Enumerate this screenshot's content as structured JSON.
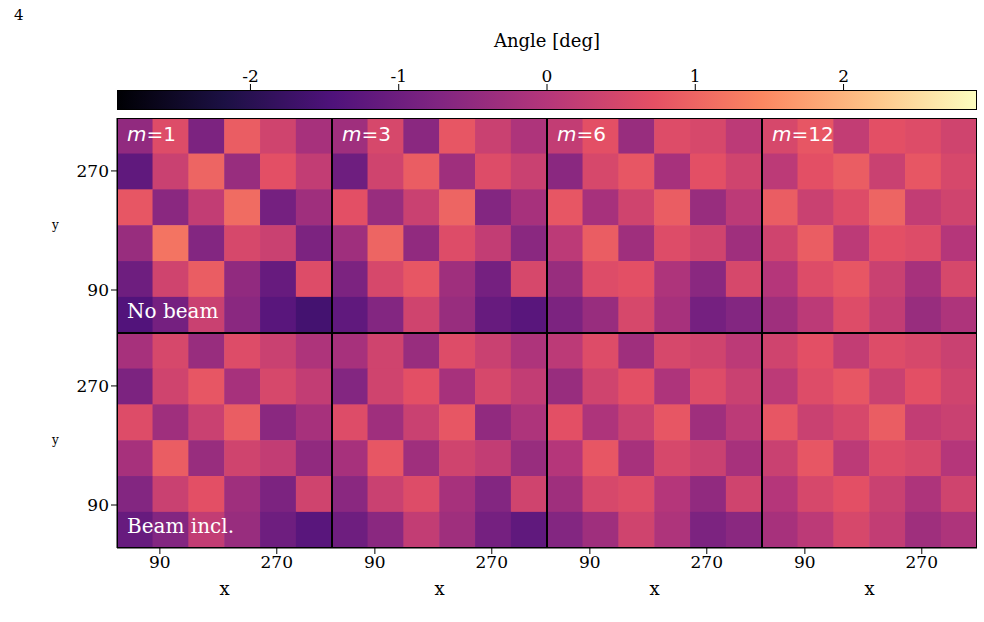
{
  "page_number": "4",
  "chart_data": {
    "type": "heatmap",
    "color": "magma",
    "colorbar": {
      "label": "Angle [deg]",
      "range": [
        -2.9,
        2.9
      ],
      "ticks": [
        -2,
        -1,
        0,
        1,
        2
      ]
    },
    "xlabel": "x",
    "ylabel": "y",
    "xlim": [
      24,
      355
    ],
    "ylim": [
      25,
      350
    ],
    "xticks": [
      90,
      270
    ],
    "yticks": [
      90,
      270
    ],
    "columns": [
      "m=1",
      "m=3",
      "m=6",
      "m=12"
    ],
    "rows": [
      "No beam",
      "Beam incl."
    ],
    "cells": [
      [
        [
          [
            -0.5,
            0.6,
            -0.8,
            0.9,
            0.4,
            -0.2
          ],
          [
            -1.2,
            0.3,
            1.0,
            -0.4,
            0.7,
            0.2
          ],
          [
            0.8,
            -0.6,
            0.2,
            1.1,
            -0.9,
            -0.3
          ],
          [
            -0.4,
            1.2,
            -0.7,
            0.5,
            0.3,
            -0.8
          ],
          [
            -1.0,
            0.4,
            0.9,
            -0.5,
            -1.1,
            0.6
          ],
          [
            -1.4,
            -0.9,
            0.3,
            -0.6,
            -1.3,
            -1.6
          ]
        ],
        [
          [
            -0.3,
            0.5,
            -0.6,
            0.8,
            0.3,
            -0.1
          ],
          [
            -1.0,
            0.4,
            0.9,
            -0.3,
            0.6,
            0.3
          ],
          [
            0.7,
            -0.4,
            0.3,
            1.0,
            -0.7,
            -0.2
          ],
          [
            -0.3,
            1.0,
            -0.5,
            0.6,
            0.2,
            -0.6
          ],
          [
            -0.8,
            0.5,
            0.8,
            -0.3,
            -0.9,
            0.5
          ],
          [
            -1.2,
            -0.7,
            0.4,
            -0.4,
            -1.1,
            -1.3
          ]
        ],
        [
          [
            0.2,
            0.7,
            -0.4,
            0.6,
            0.5,
            0.1
          ],
          [
            -0.6,
            0.5,
            0.8,
            -0.2,
            0.7,
            0.4
          ],
          [
            0.8,
            -0.2,
            0.4,
            0.9,
            -0.4,
            0.1
          ],
          [
            0.1,
            0.9,
            -0.3,
            0.6,
            0.4,
            -0.3
          ],
          [
            -0.4,
            0.6,
            0.7,
            -0.1,
            -0.6,
            0.5
          ],
          [
            -0.8,
            -0.4,
            0.5,
            -0.2,
            -0.9,
            -0.7
          ]
        ],
        [
          [
            0.5,
            0.8,
            0.2,
            0.7,
            0.6,
            0.4
          ],
          [
            0.1,
            0.7,
            0.9,
            0.3,
            0.8,
            0.5
          ],
          [
            0.9,
            0.3,
            0.6,
            1.0,
            0.2,
            0.4
          ],
          [
            0.4,
            0.9,
            0.1,
            0.7,
            0.6,
            0.0
          ],
          [
            0.0,
            0.6,
            0.8,
            0.3,
            -0.2,
            0.5
          ],
          [
            -0.3,
            0.1,
            0.6,
            0.2,
            -0.4,
            -0.1
          ]
        ]
      ],
      [
        [
          [
            -0.2,
            0.5,
            -0.4,
            0.6,
            0.3,
            -0.1
          ],
          [
            -0.8,
            0.4,
            0.8,
            -0.2,
            0.5,
            0.2
          ],
          [
            0.6,
            -0.3,
            0.3,
            0.9,
            -0.6,
            -0.2
          ],
          [
            -0.2,
            0.9,
            -0.4,
            0.4,
            0.2,
            -0.5
          ],
          [
            -0.7,
            0.3,
            0.7,
            -0.3,
            -0.8,
            0.4
          ],
          [
            -1.1,
            -0.7,
            0.2,
            -0.4,
            -1.0,
            -1.3
          ]
        ],
        [
          [
            -0.2,
            0.4,
            -0.4,
            0.6,
            0.3,
            -0.1
          ],
          [
            -0.7,
            0.4,
            0.7,
            -0.2,
            0.5,
            0.2
          ],
          [
            0.6,
            -0.3,
            0.3,
            0.8,
            -0.5,
            -0.1
          ],
          [
            -0.2,
            0.8,
            -0.3,
            0.4,
            0.2,
            -0.4
          ],
          [
            -0.6,
            0.3,
            0.6,
            -0.2,
            -0.7,
            0.4
          ],
          [
            -1.0,
            -0.6,
            0.2,
            -0.3,
            -0.9,
            -1.2
          ]
        ],
        [
          [
            0.1,
            0.6,
            -0.3,
            0.5,
            0.4,
            0.1
          ],
          [
            -0.4,
            0.4,
            0.7,
            -0.1,
            0.6,
            0.3
          ],
          [
            0.7,
            -0.1,
            0.3,
            0.8,
            -0.3,
            0.1
          ],
          [
            0.0,
            0.8,
            -0.2,
            0.5,
            0.3,
            -0.2
          ],
          [
            -0.3,
            0.5,
            0.6,
            0.0,
            -0.5,
            0.4
          ],
          [
            -0.7,
            -0.3,
            0.4,
            -0.1,
            -0.8,
            -0.6
          ]
        ],
        [
          [
            0.4,
            0.7,
            0.2,
            0.6,
            0.5,
            0.3
          ],
          [
            0.1,
            0.6,
            0.8,
            0.3,
            0.7,
            0.4
          ],
          [
            0.8,
            0.3,
            0.5,
            0.9,
            0.2,
            0.3
          ],
          [
            0.3,
            0.8,
            0.1,
            0.6,
            0.5,
            0.0
          ],
          [
            0.0,
            0.5,
            0.7,
            0.3,
            -0.1,
            0.4
          ],
          [
            -0.2,
            0.1,
            0.5,
            0.2,
            -0.3,
            -0.1
          ]
        ]
      ]
    ]
  }
}
